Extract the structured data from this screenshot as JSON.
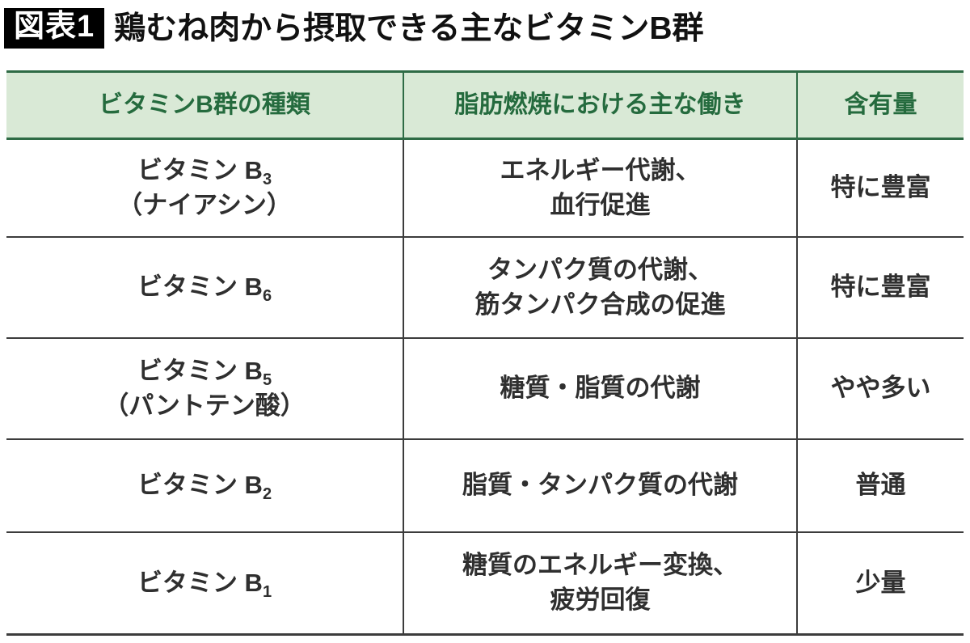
{
  "title": {
    "badge": "図表1",
    "text": "鶏むね肉から摂取できる主なビタミンB群"
  },
  "table": {
    "headers": [
      "ビタミンB群の種類",
      "脂肪燃焼における主な働き",
      "含有量"
    ],
    "rows": [
      {
        "vitamin": "ビタミン B",
        "subscript": "3",
        "alias": "（ナイアシン）",
        "function_lines": [
          "エネルギー代謝、",
          "血行促進"
        ],
        "amount": "特に豊富"
      },
      {
        "vitamin": "ビタミン B",
        "subscript": "6",
        "alias": "",
        "function_lines": [
          "タンパク質の代謝、",
          "筋タンパク合成の促進"
        ],
        "amount": "特に豊富"
      },
      {
        "vitamin": "ビタミン B",
        "subscript": "5",
        "alias": "（パントテン酸）",
        "function_lines": [
          "糖質・脂質の代謝"
        ],
        "amount": "やや多い"
      },
      {
        "vitamin": "ビタミン B",
        "subscript": "2",
        "alias": "",
        "function_lines": [
          "脂質・タンパク質の代謝"
        ],
        "amount": "普通"
      },
      {
        "vitamin": "ビタミン B",
        "subscript": "1",
        "alias": "",
        "function_lines": [
          "糖質のエネルギー変換、",
          "疲労回復"
        ],
        "amount": "少量"
      }
    ]
  },
  "colors": {
    "header_bg": "#d9e9d6",
    "header_text": "#256b3e",
    "header_border": "#2e6b45",
    "body_border": "#3c3c3c",
    "body_text": "#2f2f2f",
    "badge_bg": "#000000",
    "badge_text": "#ffffff"
  },
  "chart_data": {
    "type": "table",
    "title": "図表1 鶏むね肉から摂取できる主なビタミンB群",
    "columns": [
      "ビタミンB群の種類",
      "脂肪燃焼における主な働き",
      "含有量"
    ],
    "rows": [
      [
        "ビタミンB3（ナイアシン）",
        "エネルギー代謝、血行促進",
        "特に豊富"
      ],
      [
        "ビタミンB6",
        "タンパク質の代謝、筋タンパク合成の促進",
        "特に豊富"
      ],
      [
        "ビタミンB5（パントテン酸）",
        "糖質・脂質の代謝",
        "やや多い"
      ],
      [
        "ビタミンB2",
        "脂質・タンパク質の代謝",
        "普通"
      ],
      [
        "ビタミンB1",
        "糖質のエネルギー変換、疲労回復",
        "少量"
      ]
    ]
  }
}
